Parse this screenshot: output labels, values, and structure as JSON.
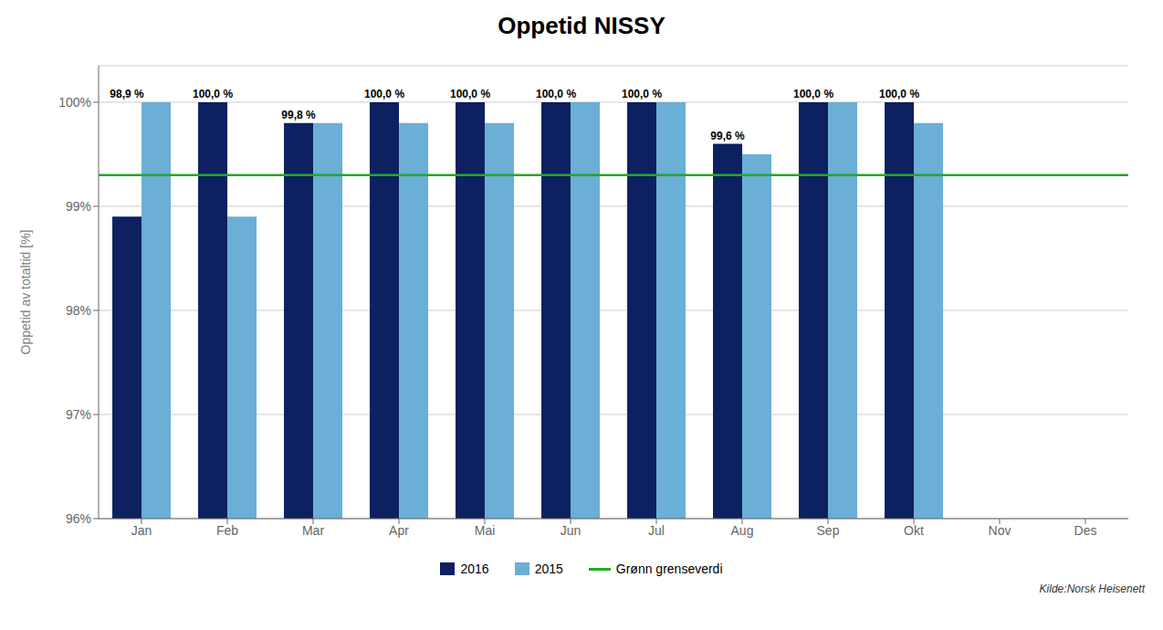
{
  "chart_data": {
    "type": "bar",
    "title": "Oppetid NISSY",
    "y_label": "Oppetid av totaltid [%]",
    "categories": [
      "Jan",
      "Feb",
      "Mar",
      "Apr",
      "Mai",
      "Jun",
      "Jul",
      "Aug",
      "Sep",
      "Okt",
      "Nov",
      "Des"
    ],
    "series": [
      {
        "name": "2016",
        "color": "#0D2060",
        "values": [
          98.9,
          100.0,
          99.8,
          100.0,
          100.0,
          100.0,
          100.0,
          99.6,
          100.0,
          100.0,
          null,
          null
        ]
      },
      {
        "name": "2015",
        "color": "#6BAED6",
        "values": [
          100.0,
          98.9,
          99.8,
          99.8,
          99.8,
          100.0,
          100.0,
          99.5,
          100.0,
          99.8,
          null,
          null
        ]
      }
    ],
    "reference_lines": [
      {
        "name": "Grønn grenseverdi",
        "value": 99.3,
        "color": "#22AA22"
      }
    ],
    "annotations": [
      {
        "x": "Jan",
        "text": "98,9 %"
      },
      {
        "x": "Feb",
        "text": "100,0 %"
      },
      {
        "x": "Mar",
        "text": "99,8 %"
      },
      {
        "x": "Apr",
        "text": "100,0 %"
      },
      {
        "x": "Mai",
        "text": "100,0 %"
      },
      {
        "x": "Jun",
        "text": "100,0 %"
      },
      {
        "x": "Jul",
        "text": "100,0 %"
      },
      {
        "x": "Aug",
        "text": "99,6 %"
      },
      {
        "x": "Sep",
        "text": "100,0 %"
      },
      {
        "x": "Okt",
        "text": "100,0 %"
      }
    ],
    "source": "Kilde:Norsk Heisenett",
    "ylim": [
      96.0,
      100.35
    ],
    "yticks": [
      {
        "value": 96,
        "label": "96%"
      },
      {
        "value": 97,
        "label": "97%"
      },
      {
        "value": 98,
        "label": "98%"
      },
      {
        "value": 99,
        "label": "99%"
      },
      {
        "value": 100,
        "label": "100%"
      }
    ],
    "grid": true,
    "legend": "bottom"
  }
}
